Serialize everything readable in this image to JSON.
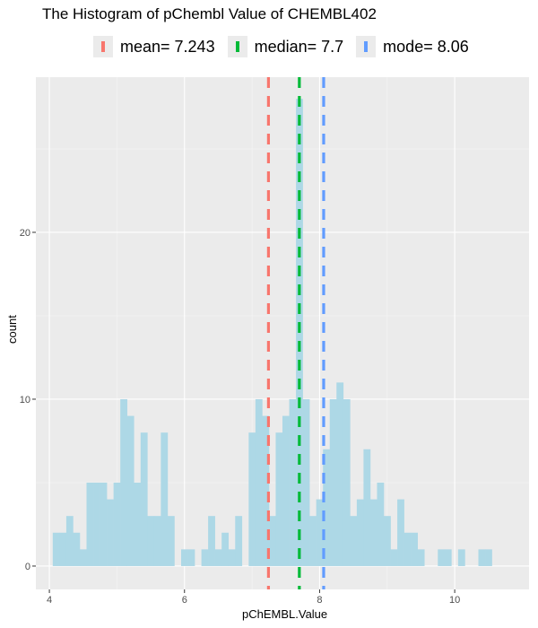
{
  "chart_data": {
    "type": "bar",
    "title": "The Histogram of pChembl Value of CHEMBL402",
    "xlabel": "pChEMBL.Value",
    "ylabel": "count",
    "xlim": [
      3.8,
      11.1
    ],
    "ylim": [
      -1.4,
      29.3
    ],
    "x_ticks": [
      4,
      6,
      8,
      10
    ],
    "x_tick_labels": [
      "4",
      "6",
      "8",
      "10"
    ],
    "y_ticks": [
      0,
      10,
      20
    ],
    "y_tick_labels": [
      "0",
      "10",
      "20"
    ],
    "grid": true,
    "bar_color": "#add8e6",
    "bins": {
      "start": 4.05,
      "width": 0.1,
      "counts": [
        2,
        2,
        3,
        2,
        1,
        5,
        5,
        5,
        4,
        5,
        10,
        9,
        5,
        8,
        3,
        3,
        8,
        3,
        0,
        1,
        1,
        0,
        1,
        3,
        1,
        2,
        1,
        3,
        0,
        8,
        10,
        9,
        3,
        8,
        9,
        10,
        28,
        10,
        3,
        4,
        7,
        10,
        11,
        10,
        3,
        4,
        7,
        4,
        5,
        3,
        1,
        4,
        2,
        2,
        1,
        0,
        0,
        1,
        1,
        0,
        1,
        0,
        0,
        1,
        1
      ]
    },
    "reference_lines": [
      {
        "name": "mean",
        "value": 7.243,
        "color": "#F8766D",
        "label": "mean= 7.243"
      },
      {
        "name": "median",
        "value": 7.7,
        "color": "#00BA38",
        "label": "median= 7.7"
      },
      {
        "name": "mode",
        "value": 8.06,
        "color": "#619CFF",
        "label": "mode= 8.06"
      }
    ],
    "legend_position": "top"
  }
}
